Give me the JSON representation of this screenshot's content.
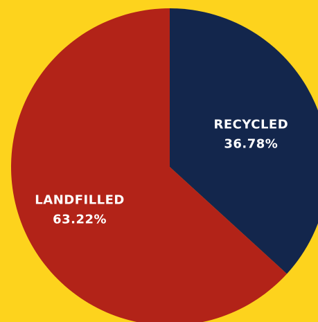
{
  "chart_data": {
    "type": "pie",
    "slices": [
      {
        "label": "RECYCLED",
        "value": 36.78,
        "value_text": "36.78%",
        "color": "#13264C"
      },
      {
        "label": "LANDFILLED",
        "value": 63.22,
        "value_text": "63.22%",
        "color": "#B22318"
      }
    ],
    "start": "12 o'clock",
    "direction": "clockwise",
    "background_color": "#FDD31D",
    "legend": "none",
    "labels": "on-slice"
  }
}
